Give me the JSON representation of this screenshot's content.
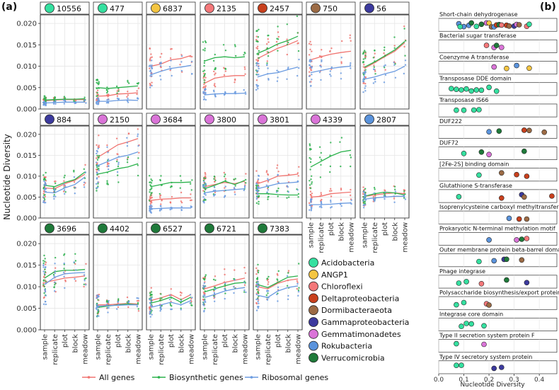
{
  "panel_a_label": "(a)",
  "panel_b_label": "(b)",
  "colors": {
    "all_genes": "#f07470",
    "biosynthetic": "#2bb24c",
    "ribosomal": "#6b9be0"
  },
  "taxa": [
    {
      "name": "Acidobacteria",
      "color": "#35e0a0"
    },
    {
      "name": "ANGP1",
      "color": "#f4c542"
    },
    {
      "name": "Chloroflexi",
      "color": "#f4787a"
    },
    {
      "name": "Deltaproteobacteria",
      "color": "#c8401d"
    },
    {
      "name": "Dormibacteraeota",
      "color": "#9c6b45"
    },
    {
      "name": "Gammaproteobacteria",
      "color": "#3c3a9e"
    },
    {
      "name": "Gemmatimonadetes",
      "color": "#da74d8"
    },
    {
      "name": "Rokubacteria",
      "color": "#5a93dc"
    },
    {
      "name": "Verrucomicrobia",
      "color": "#1f7a3a"
    }
  ],
  "chart_data": [
    {
      "type": "line",
      "title": "(a)",
      "ylabel": "Nucleotide Diversity",
      "categories": [
        "sample",
        "replicate",
        "plot",
        "block",
        "meadow"
      ],
      "ylim": [
        0,
        0.022
      ],
      "yticks": [
        "0.000",
        "0.005",
        "0.010",
        "0.015",
        "0.020"
      ],
      "legend": [
        "All genes",
        "Biosynthetic genes",
        "Ribosomal genes"
      ],
      "panels": [
        {
          "id": "10556",
          "taxon": 0,
          "all": [
            0.0019,
            0.0021,
            0.0022,
            0.0022,
            0.0022
          ],
          "bio": [
            0.0021,
            0.0022,
            0.0023,
            0.0023,
            0.0024
          ],
          "ribo": [
            0.0014,
            0.0015,
            0.0016,
            0.0016,
            0.0016
          ]
        },
        {
          "id": "477",
          "taxon": 0,
          "all": [
            0.003,
            0.0031,
            0.0035,
            0.0036,
            0.0038
          ],
          "bio": [
            0.005,
            0.0048,
            0.005,
            0.0052,
            0.0054
          ],
          "ribo": [
            0.0018,
            0.0018,
            0.002,
            0.0021,
            0.002
          ]
        },
        {
          "id": "6837",
          "taxon": 1,
          "all": [
            0.01,
            0.0105,
            0.0115,
            0.0118,
            0.0125
          ],
          "bio": null,
          "ribo": [
            0.008,
            0.0088,
            0.0095,
            0.0098,
            0.0102
          ]
        },
        {
          "id": "2135",
          "taxon": 2,
          "all": [
            0.006,
            0.0072,
            0.0076,
            0.0078,
            0.0078
          ],
          "bio": [
            0.0112,
            0.012,
            0.0122,
            0.012,
            0.0122
          ],
          "ribo": [
            0.0033,
            0.0035,
            0.0036,
            0.0036,
            0.0037
          ]
        },
        {
          "id": "2457",
          "taxon": 3,
          "all": [
            0.0118,
            0.013,
            0.0142,
            0.015,
            0.016
          ],
          "bio": [
            0.013,
            0.014,
            0.0152,
            0.016,
            0.017
          ],
          "ribo": [
            0.0075,
            0.0082,
            0.0085,
            0.0092,
            0.0098
          ]
        },
        {
          "id": "750",
          "taxon": 4,
          "all": [
            0.0115,
            0.0122,
            0.0128,
            0.0132,
            0.0135
          ],
          "bio": null,
          "ribo": [
            0.0085,
            0.009,
            0.0095,
            0.0098,
            0.01
          ]
        },
        {
          "id": "56",
          "taxon": 5,
          "all": [
            0.0095,
            0.0108,
            0.0122,
            0.0135,
            0.0155
          ],
          "bio": [
            0.0098,
            0.011,
            0.0124,
            0.0138,
            0.0158
          ],
          "ribo": [
            0.007,
            0.0075,
            0.0082,
            0.0088,
            0.01
          ]
        },
        {
          "id": "884",
          "taxon": 5,
          "all": [
            0.0072,
            0.007,
            0.0082,
            0.009,
            0.0105
          ],
          "bio": [
            0.0078,
            0.0075,
            0.0085,
            0.0092,
            0.011
          ],
          "ribo": [
            0.0062,
            0.006,
            0.0072,
            0.008,
            0.0098
          ]
        },
        {
          "id": "2150",
          "taxon": 6,
          "all": [
            0.0145,
            0.016,
            0.0175,
            0.0182,
            0.019
          ],
          "bio": [
            0.0105,
            0.011,
            0.0118,
            0.0122,
            0.013
          ],
          "ribo": [
            0.0125,
            0.0135,
            0.0145,
            0.015,
            0.0158
          ]
        },
        {
          "id": "3684",
          "taxon": 6,
          "all": [
            0.0042,
            0.0045,
            0.0046,
            0.0048,
            0.0048
          ],
          "bio": [
            0.0075,
            0.008,
            0.0085,
            0.0085,
            0.0086
          ],
          "ribo": [
            0.0022,
            0.0023,
            0.0024,
            0.0024,
            0.0024
          ]
        },
        {
          "id": "3800",
          "taxon": 6,
          "all": [
            0.0075,
            0.008,
            0.0085,
            0.0082,
            0.0088
          ],
          "bio": [
            0.007,
            0.0078,
            0.0088,
            0.008,
            0.009
          ],
          "ribo": [
            0.006,
            0.0064,
            0.0066,
            0.0068,
            0.007
          ]
        },
        {
          "id": "3801",
          "taxon": 6,
          "all": [
            0.0082,
            0.009,
            0.01,
            0.0102,
            0.0105
          ],
          "bio": [
            0.0058,
            0.0058,
            0.0056,
            0.0055,
            0.0055
          ],
          "ribo": [
            0.007,
            0.0076,
            0.0082,
            0.0084,
            0.0086
          ]
        },
        {
          "id": "4339",
          "taxon": 6,
          "all": [
            0.005,
            0.0052,
            0.0058,
            0.006,
            0.0062
          ],
          "bio": [
            0.0122,
            0.0135,
            0.0148,
            0.0158,
            0.0162
          ],
          "ribo": [
            0.0032,
            0.0032,
            0.0033,
            0.0035,
            0.0036
          ]
        },
        {
          "id": "2807",
          "taxon": 7,
          "all": [
            0.0052,
            0.0055,
            0.0058,
            0.006,
            0.0058
          ],
          "bio": [
            0.0052,
            0.0058,
            0.0062,
            0.006,
            0.0055
          ],
          "ribo": [
            0.0045,
            0.0048,
            0.005,
            0.0052,
            0.0052
          ]
        },
        {
          "id": "3696",
          "taxon": 8,
          "all": [
            0.011,
            0.0115,
            0.012,
            0.0122,
            0.0125
          ],
          "bio": [
            0.012,
            0.0135,
            0.0138,
            0.0138,
            0.014
          ],
          "ribo": [
            0.0105,
            0.0122,
            0.013,
            0.0132,
            0.0133
          ]
        },
        {
          "id": "4402",
          "taxon": 8,
          "all": [
            0.0058,
            0.0058,
            0.006,
            0.0061,
            0.006
          ],
          "bio": [
            0.0052,
            0.0055,
            0.0058,
            0.006,
            0.0058
          ],
          "ribo": [
            0.0055,
            0.0056,
            0.0057,
            0.0058,
            0.0058
          ]
        },
        {
          "id": "6527",
          "taxon": 8,
          "all": [
            0.0068,
            0.0074,
            0.0082,
            0.007,
            0.0082
          ],
          "bio": [
            0.0062,
            0.0068,
            0.0076,
            0.0064,
            0.0076
          ],
          "ribo": [
            0.0052,
            0.0058,
            0.0064,
            0.0058,
            0.0068
          ]
        },
        {
          "id": "6721",
          "taxon": 8,
          "all": [
            0.0095,
            0.0102,
            0.011,
            0.0115,
            0.012
          ],
          "bio": [
            0.0088,
            0.0095,
            0.0102,
            0.0108,
            0.011
          ],
          "ribo": [
            0.0075,
            0.0082,
            0.009,
            0.0095,
            0.0098
          ]
        },
        {
          "id": "7383",
          "taxon": 8,
          "all": [
            0.01,
            0.0095,
            0.0108,
            0.0115,
            0.0118
          ],
          "bio": [
            0.0105,
            0.0098,
            0.011,
            0.0122,
            0.0125
          ],
          "ribo": [
            0.008,
            0.0075,
            0.009,
            0.0098,
            0.0102
          ]
        }
      ]
    },
    {
      "type": "scatter",
      "title": "(b)",
      "xlabel": "Nucleotide Diversity",
      "xlim": [
        0,
        0.45
      ],
      "xticks": [
        "0.0",
        "0.1",
        "0.2",
        "0.3",
        "0.4"
      ],
      "domains": [
        {
          "name": "Short-chain dehydrogenase",
          "points": [
            [
              0.08,
              7
            ],
            [
              0.1,
              7
            ],
            [
              0.12,
              7
            ],
            [
              0.085,
              0
            ],
            [
              0.13,
              8
            ],
            [
              0.15,
              0
            ],
            [
              0.17,
              8
            ],
            [
              0.19,
              6
            ],
            [
              0.2,
              1
            ],
            [
              0.21,
              4
            ],
            [
              0.22,
              7
            ],
            [
              0.23,
              3
            ],
            [
              0.24,
              8
            ],
            [
              0.25,
              2
            ],
            [
              0.27,
              3
            ],
            [
              0.28,
              4
            ],
            [
              0.3,
              5
            ],
            [
              0.31,
              6
            ],
            [
              0.32,
              4
            ],
            [
              0.35,
              2
            ],
            [
              0.36,
              0
            ]
          ]
        },
        {
          "name": "Bacterial sugar transferase",
          "points": [
            [
              0.19,
              2
            ],
            [
              0.22,
              6
            ],
            [
              0.23,
              8
            ],
            [
              0.25,
              6
            ]
          ]
        },
        {
          "name": "Coenzyme A transferase",
          "points": [
            [
              0.22,
              6
            ],
            [
              0.27,
              1
            ],
            [
              0.31,
              7
            ],
            [
              0.36,
              1
            ]
          ]
        },
        {
          "name": "Transposase DDE domain",
          "points": [
            [
              0.05,
              0
            ],
            [
              0.07,
              0
            ],
            [
              0.09,
              0
            ],
            [
              0.11,
              0
            ],
            [
              0.13,
              0
            ],
            [
              0.15,
              0
            ],
            [
              0.17,
              0
            ],
            [
              0.2,
              0
            ],
            [
              0.23,
              0
            ]
          ]
        },
        {
          "name": "Transposase IS66",
          "points": [
            [
              0.07,
              0
            ],
            [
              0.1,
              0
            ],
            [
              0.14,
              0
            ],
            [
              0.16,
              0
            ]
          ]
        },
        {
          "name": "DUF222",
          "points": [
            [
              0.2,
              7
            ],
            [
              0.24,
              8
            ],
            [
              0.34,
              3
            ],
            [
              0.36,
              4
            ],
            [
              0.42,
              4
            ]
          ]
        },
        {
          "name": "DUF72",
          "points": [
            [
              0.1,
              0
            ],
            [
              0.17,
              8
            ],
            [
              0.2,
              6
            ],
            [
              0.34,
              8
            ]
          ]
        },
        {
          "name": "[2Fe-2S] binding domain",
          "points": [
            [
              0.16,
              0
            ],
            [
              0.25,
              4
            ],
            [
              0.31,
              3
            ],
            [
              0.35,
              3
            ]
          ]
        },
        {
          "name": "Glutathione S-transferase",
          "points": [
            [
              0.08,
              0
            ],
            [
              0.25,
              3
            ],
            [
              0.33,
              5
            ],
            [
              0.34,
              4
            ],
            [
              0.45,
              3
            ]
          ]
        },
        {
          "name": "Isoprenylcysteine carboxyl methyltransferase",
          "points": [
            [
              0.28,
              7
            ],
            [
              0.32,
              3
            ],
            [
              0.35,
              4
            ]
          ]
        },
        {
          "name": "Prokaryotic N-terminal methylation motif",
          "points": [
            [
              0.2,
              7
            ],
            [
              0.31,
              6
            ],
            [
              0.33,
              8
            ],
            [
              0.35,
              2
            ]
          ]
        },
        {
          "name": "Outer membrane protein beta-barrel domain",
          "points": [
            [
              0.16,
              0
            ],
            [
              0.22,
              7
            ],
            [
              0.26,
              5
            ],
            [
              0.27,
              8
            ],
            [
              0.33,
              4
            ]
          ]
        },
        {
          "name": "Phage integrase",
          "points": [
            [
              0.08,
              0
            ],
            [
              0.11,
              0
            ],
            [
              0.17,
              2
            ],
            [
              0.27,
              8
            ],
            [
              0.35,
              5
            ]
          ]
        },
        {
          "name": "Polysaccharide biosynthesis/export protein",
          "points": [
            [
              0.07,
              0
            ],
            [
              0.1,
              0
            ],
            [
              0.19,
              2
            ],
            [
              0.2,
              4
            ]
          ]
        },
        {
          "name": "Integrase core domain",
          "points": [
            [
              0.09,
              0
            ],
            [
              0.11,
              0
            ],
            [
              0.13,
              0
            ],
            [
              0.18,
              0
            ]
          ]
        },
        {
          "name": "Type II secretion system protein F",
          "points": [
            [
              0.07,
              0
            ],
            [
              0.18,
              6
            ]
          ]
        },
        {
          "name": "Type IV secretory system protein",
          "points": [
            [
              0.07,
              0
            ],
            [
              0.09,
              0
            ],
            [
              0.22,
              5
            ],
            [
              0.25,
              5
            ]
          ]
        }
      ]
    }
  ]
}
